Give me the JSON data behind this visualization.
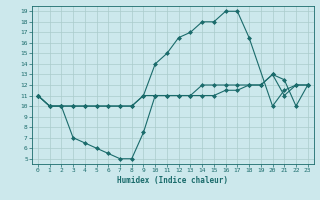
{
  "xlabel": "Humidex (Indice chaleur)",
  "bg_color": "#cce8ec",
  "grid_color": "#aacccc",
  "line_color": "#1a6b6b",
  "xlim": [
    -0.5,
    23.5
  ],
  "ylim": [
    4.5,
    19.5
  ],
  "xticks": [
    0,
    1,
    2,
    3,
    4,
    5,
    6,
    7,
    8,
    9,
    10,
    11,
    12,
    13,
    14,
    15,
    16,
    17,
    18,
    19,
    20,
    21,
    22,
    23
  ],
  "yticks": [
    5,
    6,
    7,
    8,
    9,
    10,
    11,
    12,
    13,
    14,
    15,
    16,
    17,
    18,
    19
  ],
  "series1_x": [
    0,
    1,
    2,
    3,
    4,
    5,
    6,
    7,
    8,
    9,
    10,
    11,
    12,
    13,
    14,
    15,
    16,
    17,
    18,
    19,
    20,
    21,
    22,
    23
  ],
  "series1_y": [
    11,
    10,
    10,
    10,
    10,
    10,
    10,
    10,
    10,
    11,
    11,
    11,
    11,
    11,
    12,
    12,
    12,
    12,
    12,
    12,
    13,
    11,
    12,
    12
  ],
  "series2_x": [
    0,
    1,
    2,
    3,
    4,
    5,
    6,
    7,
    8,
    9,
    10,
    11,
    12,
    13,
    14,
    15,
    16,
    17,
    18,
    20,
    21,
    22,
    23
  ],
  "series2_y": [
    11,
    10,
    10,
    10,
    10,
    10,
    10,
    10,
    10,
    11,
    14,
    15,
    16.5,
    17,
    18,
    18,
    19,
    19,
    16.5,
    10,
    11.5,
    12,
    12
  ],
  "series3_x": [
    0,
    1,
    2,
    3,
    4,
    5,
    6,
    7,
    8,
    9,
    10,
    11,
    12,
    13,
    14,
    15,
    16,
    17,
    18,
    19,
    20,
    21,
    22,
    23
  ],
  "series3_y": [
    11,
    10,
    10,
    7,
    6.5,
    6,
    5.5,
    5,
    5,
    7.5,
    11,
    11,
    11,
    11,
    11,
    11,
    11.5,
    11.5,
    12,
    12,
    13,
    12.5,
    10,
    12
  ],
  "marker_size": 2.0,
  "line_width": 0.8
}
